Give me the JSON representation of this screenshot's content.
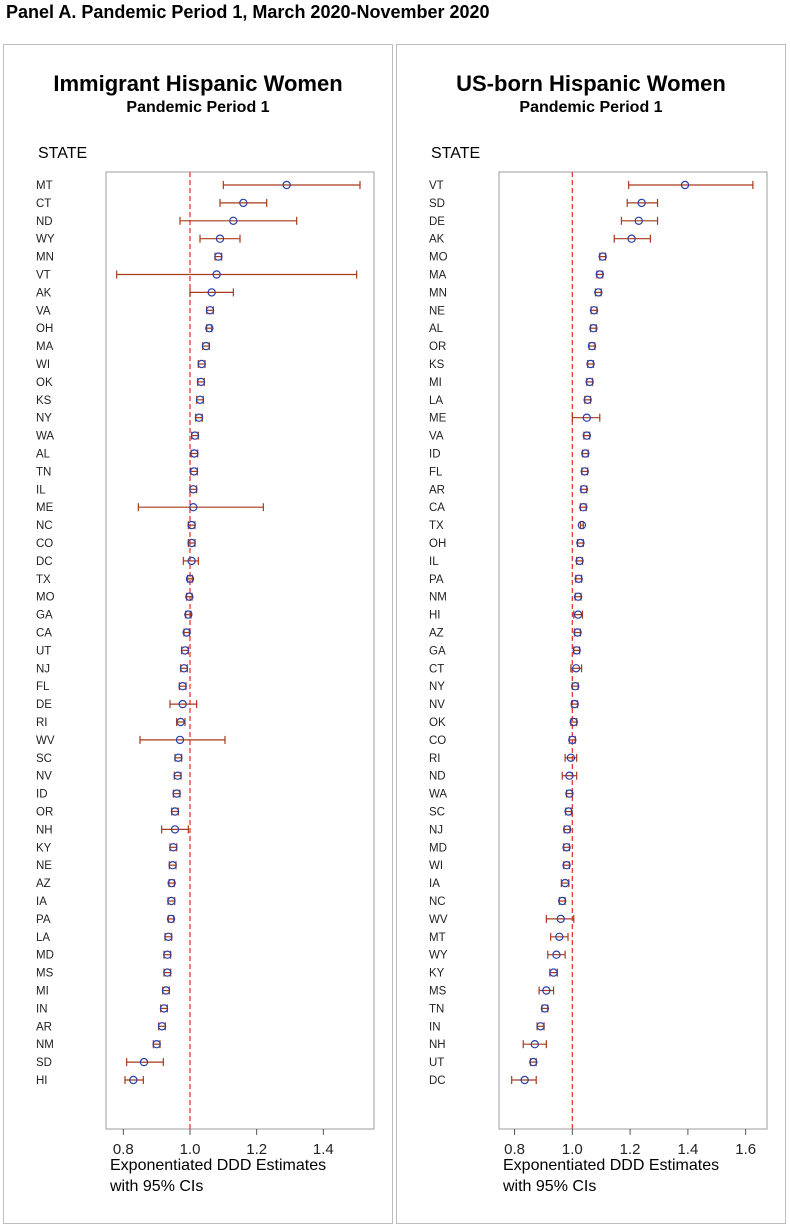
{
  "header": {
    "title": "Panel A. Pandemic Period 1, March 2020-November 2020"
  },
  "panels": [
    {
      "title": "Immigrant Hispanic Women",
      "subtitle": "Pandemic Period 1",
      "state_label": "STATE",
      "xlabel_line1": "Exponentiated DDD Estimates",
      "xlabel_line2": "with 95% CIs"
    },
    {
      "title": "US-born Hispanic Women",
      "subtitle": "Pandemic Period 1",
      "state_label": "STATE",
      "xlabel_line1": "Exponentiated DDD Estimates",
      "xlabel_line2": "with 95% CIs"
    }
  ],
  "colors": {
    "marker": "#2b3fa8",
    "error_bar": "#a83a1a",
    "reference_line": "#e53935",
    "frame": "#9e9e9e"
  },
  "chart_data": [
    {
      "type": "forest",
      "title": "Immigrant Hispanic Women",
      "subtitle": "Pandemic Period 1",
      "ylabel": "STATE",
      "xlabel": "Exponentiated DDD Estimates with 95% CIs",
      "xlim": [
        0.76,
        1.54
      ],
      "xticks": [
        0.8,
        1.0,
        1.2,
        1.4
      ],
      "xtick_labels": [
        "0.8",
        "1.0",
        "1.2",
        "1.4"
      ],
      "reference_line": 1.0,
      "categories": [
        "MT",
        "CT",
        "ND",
        "WY",
        "MN",
        "VT",
        "AK",
        "VA",
        "OH",
        "MA",
        "WI",
        "OK",
        "KS",
        "NY",
        "WA",
        "AL",
        "TN",
        "IL",
        "ME",
        "NC",
        "CO",
        "DC",
        "TX",
        "MO",
        "GA",
        "CA",
        "UT",
        "NJ",
        "FL",
        "DE",
        "RI",
        "WV",
        "SC",
        "NV",
        "ID",
        "OR",
        "NH",
        "KY",
        "NE",
        "AZ",
        "IA",
        "PA",
        "LA",
        "MD",
        "MS",
        "MI",
        "IN",
        "AR",
        "NM",
        "SD",
        "HI"
      ],
      "estimate": [
        1.29,
        1.16,
        1.13,
        1.09,
        1.085,
        1.08,
        1.065,
        1.06,
        1.058,
        1.048,
        1.035,
        1.033,
        1.03,
        1.027,
        1.015,
        1.013,
        1.012,
        1.01,
        1.01,
        1.005,
        1.005,
        1.005,
        1.0,
        0.998,
        0.995,
        0.99,
        0.985,
        0.982,
        0.978,
        0.978,
        0.972,
        0.97,
        0.965,
        0.963,
        0.96,
        0.955,
        0.955,
        0.95,
        0.948,
        0.945,
        0.944,
        0.943,
        0.935,
        0.932,
        0.932,
        0.928,
        0.922,
        0.916,
        0.9,
        0.862,
        0.83
      ],
      "ci_low": [
        1.1,
        1.09,
        0.97,
        1.03,
        1.075,
        0.78,
        1.0,
        1.05,
        1.05,
        1.038,
        1.025,
        1.023,
        1.02,
        1.017,
        1.005,
        1.003,
        1.002,
        1.0,
        0.845,
        0.995,
        0.995,
        0.98,
        0.993,
        0.99,
        0.987,
        0.982,
        0.975,
        0.972,
        0.968,
        0.94,
        0.96,
        0.85,
        0.955,
        0.953,
        0.95,
        0.945,
        0.915,
        0.94,
        0.938,
        0.937,
        0.934,
        0.935,
        0.925,
        0.922,
        0.922,
        0.918,
        0.912,
        0.906,
        0.89,
        0.81,
        0.805
      ],
      "ci_high": [
        1.51,
        1.23,
        1.32,
        1.15,
        1.095,
        1.5,
        1.13,
        1.07,
        1.065,
        1.058,
        1.045,
        1.043,
        1.04,
        1.037,
        1.025,
        1.023,
        1.022,
        1.02,
        1.22,
        1.015,
        1.015,
        1.025,
        1.007,
        1.006,
        1.003,
        0.998,
        0.995,
        0.992,
        0.988,
        1.02,
        0.985,
        1.105,
        0.975,
        0.973,
        0.97,
        0.965,
        0.995,
        0.96,
        0.958,
        0.953,
        0.954,
        0.951,
        0.945,
        0.942,
        0.942,
        0.938,
        0.932,
        0.926,
        0.91,
        0.92,
        0.86
      ]
    },
    {
      "type": "forest",
      "title": "US-born Hispanic Women",
      "subtitle": "Pandemic Period 1",
      "ylabel": "STATE",
      "xlabel": "Exponentiated DDD Estimates with 95% CIs",
      "xlim": [
        0.76,
        1.66
      ],
      "xticks": [
        0.8,
        1.0,
        1.2,
        1.4,
        1.6
      ],
      "xtick_labels": [
        "0.8",
        "1.0",
        "1.2",
        "1.4",
        "1.6"
      ],
      "reference_line": 1.0,
      "categories": [
        "VT",
        "SD",
        "DE",
        "AK",
        "MO",
        "MA",
        "MN",
        "NE",
        "AL",
        "OR",
        "KS",
        "MI",
        "LA",
        "ME",
        "VA",
        "ID",
        "FL",
        "AR",
        "CA",
        "TX",
        "OH",
        "IL",
        "PA",
        "NM",
        "HI",
        "AZ",
        "GA",
        "CT",
        "NY",
        "NV",
        "OK",
        "CO",
        "RI",
        "ND",
        "WA",
        "SC",
        "NJ",
        "MD",
        "WI",
        "IA",
        "NC",
        "WV",
        "MT",
        "WY",
        "KY",
        "MS",
        "TN",
        "IN",
        "NH",
        "UT",
        "DC"
      ],
      "estimate": [
        1.39,
        1.24,
        1.23,
        1.205,
        1.105,
        1.095,
        1.09,
        1.075,
        1.073,
        1.068,
        1.063,
        1.06,
        1.053,
        1.05,
        1.05,
        1.045,
        1.043,
        1.04,
        1.038,
        1.033,
        1.028,
        1.025,
        1.022,
        1.02,
        1.02,
        1.018,
        1.015,
        1.013,
        1.01,
        1.008,
        1.005,
        1.0,
        0.995,
        0.99,
        0.99,
        0.987,
        0.982,
        0.98,
        0.98,
        0.975,
        0.965,
        0.96,
        0.955,
        0.945,
        0.935,
        0.91,
        0.905,
        0.89,
        0.87,
        0.865,
        0.835
      ],
      "ci_low": [
        1.195,
        1.19,
        1.17,
        1.145,
        1.095,
        1.085,
        1.08,
        1.065,
        1.063,
        1.058,
        1.053,
        1.05,
        1.043,
        1.0,
        1.04,
        1.035,
        1.033,
        1.03,
        1.028,
        1.028,
        1.018,
        1.015,
        1.012,
        1.01,
        1.005,
        1.008,
        1.005,
        0.995,
        1.0,
        0.998,
        0.995,
        0.99,
        0.975,
        0.965,
        0.98,
        0.977,
        0.972,
        0.97,
        0.97,
        0.962,
        0.955,
        0.91,
        0.925,
        0.915,
        0.922,
        0.885,
        0.895,
        0.878,
        0.83,
        0.855,
        0.79
      ],
      "ci_high": [
        1.625,
        1.295,
        1.295,
        1.27,
        1.115,
        1.105,
        1.1,
        1.085,
        1.083,
        1.078,
        1.073,
        1.07,
        1.063,
        1.095,
        1.06,
        1.055,
        1.053,
        1.05,
        1.048,
        1.038,
        1.038,
        1.035,
        1.032,
        1.03,
        1.035,
        1.028,
        1.025,
        1.032,
        1.02,
        1.018,
        1.015,
        1.01,
        1.015,
        1.015,
        1.0,
        0.997,
        0.992,
        0.99,
        0.99,
        0.988,
        0.975,
        1.005,
        0.985,
        0.975,
        0.948,
        0.935,
        0.915,
        0.902,
        0.91,
        0.875,
        0.875
      ]
    }
  ]
}
